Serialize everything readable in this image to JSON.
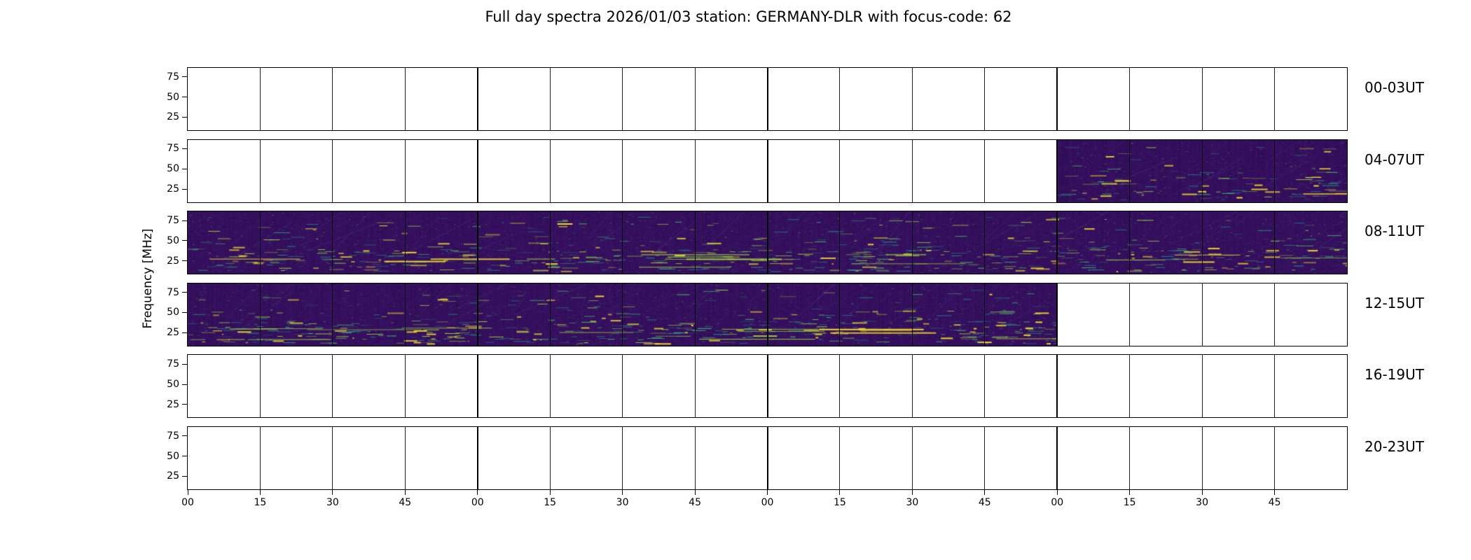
{
  "title": "Full day spectra 2026/01/03 station: GERMANY-DLR with focus-code: 62",
  "chart_data": {
    "type": "heatmap",
    "subtype": "spectrogram-grid",
    "title": "Full day spectra 2026/01/03 station: GERMANY-DLR with focus-code: 62",
    "ylabel": "Frequency [MHz]",
    "y_ticks": [
      75,
      50,
      25
    ],
    "y_range_mhz": [
      8,
      87
    ],
    "x_tick_labels": [
      "00",
      "15",
      "30",
      "45",
      "00",
      "15",
      "30",
      "45",
      "00",
      "15",
      "30",
      "45",
      "00",
      "15",
      "30",
      "45"
    ],
    "minutes_per_cell": 15,
    "cells_per_row": 16,
    "hours_per_row": 4,
    "grid": "vertical lines every 15 minutes, heavier on hour boundaries",
    "legend_position": "none",
    "colormap": "viridis",
    "rows": [
      {
        "label": "00-03UT",
        "coverage": [],
        "intensity": 0.0
      },
      {
        "label": "04-07UT",
        "coverage": [
          [
            0.75,
            1.0
          ]
        ],
        "intensity": 0.8
      },
      {
        "label": "08-11UT",
        "coverage": [
          [
            0.0,
            1.0
          ]
        ],
        "intensity": 1.05
      },
      {
        "label": "12-15UT",
        "coverage": [
          [
            0.0,
            0.75
          ]
        ],
        "intensity": 1.15
      },
      {
        "label": "16-19UT",
        "coverage": [],
        "intensity": 0.0
      },
      {
        "label": "20-23UT",
        "coverage": [],
        "intensity": 0.0
      }
    ],
    "palette": {
      "base": "#371060",
      "lowest": "#24094a",
      "low": [
        "#46327e",
        "#365c8d"
      ],
      "mid": [
        "#277f8e",
        "#1fa187",
        "#4ac16d"
      ],
      "hi1": "#a0da39",
      "hi2": "#fde725"
    },
    "noise_seed": 20260103
  }
}
